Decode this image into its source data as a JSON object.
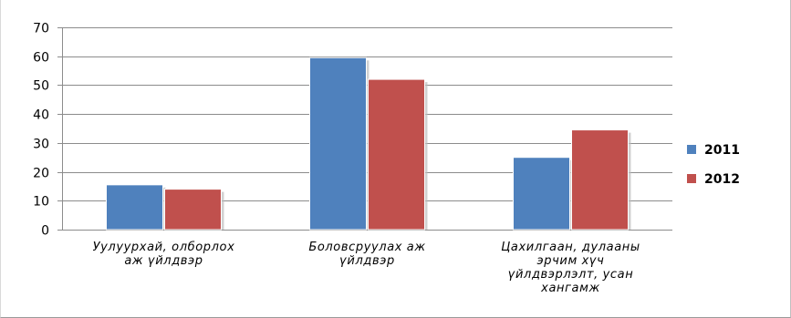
{
  "chart_data": {
    "type": "bar",
    "title": "",
    "xlabel": "",
    "ylabel": "",
    "ylim": [
      0,
      70
    ],
    "yticks": [
      0,
      10,
      20,
      30,
      40,
      50,
      60,
      70
    ],
    "grid": true,
    "legend_position": "right",
    "categories": [
      [
        "Уулуурхай, олборлох",
        "аж үйлдвэр"
      ],
      [
        "Боловсруулах аж",
        "үйлдвэр"
      ],
      [
        "Цахилгаан, дулааны",
        "эрчим хүч",
        "үйлдвэрлэлт, усан",
        "хангамж"
      ]
    ],
    "series": [
      {
        "name": "2011",
        "color": "#4f81bd",
        "values": [
          15.5,
          59.5,
          25
        ]
      },
      {
        "name": "2012",
        "color": "#c0504d",
        "values": [
          14,
          52,
          34.5
        ]
      }
    ]
  }
}
